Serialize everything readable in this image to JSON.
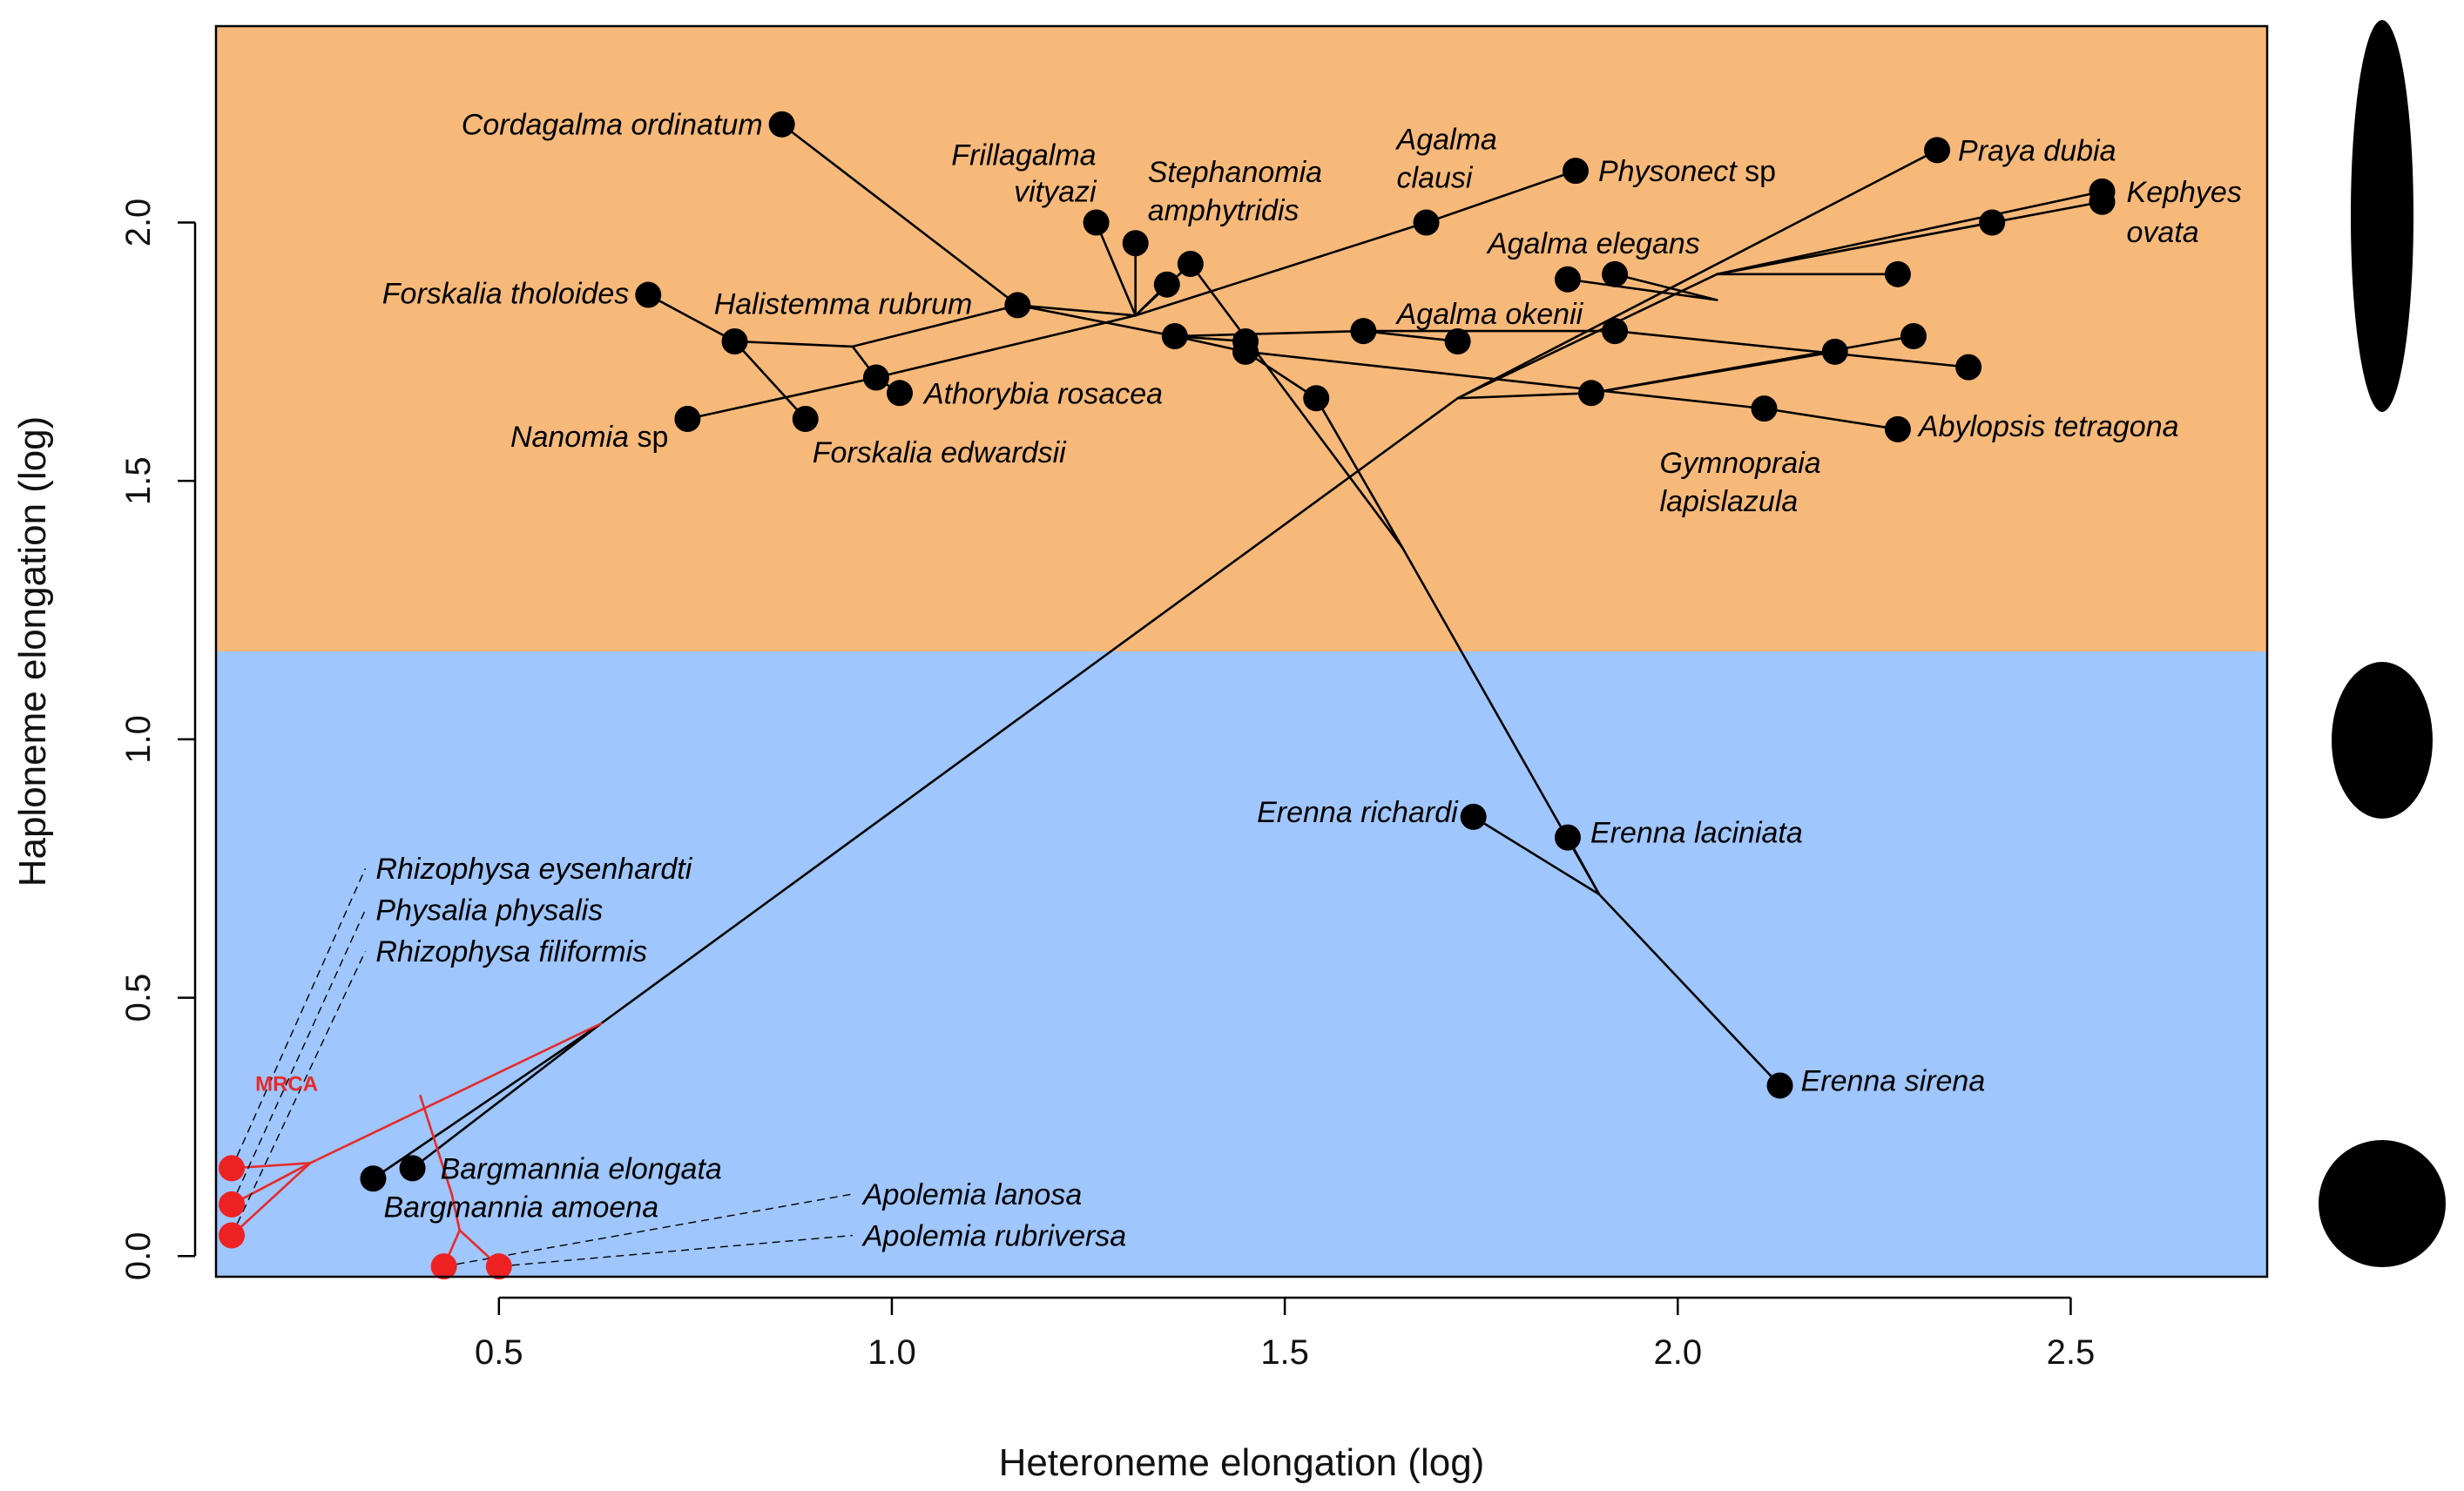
{
  "chart_data": {
    "type": "scatter",
    "title": "",
    "xlabel": "Heteroneme elongation (log)",
    "ylabel": "Haploneme elongation (log)",
    "xlim": [
      0.14,
      2.75
    ],
    "ylim": [
      -0.04,
      2.38
    ],
    "xticks": [
      {
        "value": 0.5,
        "label": "0.5"
      },
      {
        "value": 1.0,
        "label": "1.0"
      },
      {
        "value": 1.5,
        "label": "1.5"
      },
      {
        "value": 2.0,
        "label": "2.0"
      },
      {
        "value": 2.5,
        "label": "2.5"
      }
    ],
    "yticks": [
      {
        "value": 0.0,
        "label": "0.0"
      },
      {
        "value": 0.5,
        "label": "0.5"
      },
      {
        "value": 1.0,
        "label": "1.0"
      },
      {
        "value": 1.5,
        "label": "1.5"
      },
      {
        "value": 2.0,
        "label": "2.0"
      }
    ],
    "background_regions": [
      {
        "y_from": 1.17,
        "y_to": 2.38,
        "color": "#f6b97a"
      },
      {
        "y_from": -0.04,
        "y_to": 1.17,
        "color": "#9fc6fd"
      }
    ],
    "colors": {
      "black_points": "#000000",
      "red_points": "#ee2222",
      "red_branches": "#e52a2a"
    },
    "points": [
      {
        "label": "Cordagalma ordinatum",
        "x": 0.86,
        "y": 2.19,
        "color": "black"
      },
      {
        "label": "Physonect sp",
        "x": 1.87,
        "y": 2.1,
        "color": "black"
      },
      {
        "label": "Praya dubia",
        "x": 2.33,
        "y": 2.14,
        "color": "black"
      },
      {
        "label": "Kephyes ovata",
        "x": 2.54,
        "y": 2.06,
        "color": "black"
      },
      {
        "label": "",
        "x": 2.54,
        "y": 2.04,
        "color": "black"
      },
      {
        "label": "",
        "x": 2.4,
        "y": 2.0,
        "color": "black"
      },
      {
        "label": "Frillagalma vityazi",
        "x": 1.26,
        "y": 2.0,
        "color": "black"
      },
      {
        "label": "Stephanomia amphytridis",
        "x": 1.31,
        "y": 1.96,
        "color": "black"
      },
      {
        "label": "",
        "x": 1.38,
        "y": 1.92,
        "color": "black"
      },
      {
        "label": "",
        "x": 1.35,
        "y": 1.88,
        "color": "black"
      },
      {
        "label": "Agalma clausi",
        "x": 1.68,
        "y": 2.0,
        "color": "black"
      },
      {
        "label": "Agalma elegans",
        "x": 1.86,
        "y": 1.89,
        "color": "black"
      },
      {
        "label": "",
        "x": 1.92,
        "y": 1.9,
        "color": "black"
      },
      {
        "label": "",
        "x": 2.28,
        "y": 1.9,
        "color": "black"
      },
      {
        "label": "Forskalia tholoides",
        "x": 0.69,
        "y": 1.86,
        "color": "black"
      },
      {
        "label": "Halistemma rubrum",
        "x": 1.16,
        "y": 1.84,
        "color": "black"
      },
      {
        "label": "",
        "x": 0.8,
        "y": 1.77,
        "color": "black"
      },
      {
        "label": "",
        "x": 0.98,
        "y": 1.7,
        "color": "black"
      },
      {
        "label": "Athorybia rosacea",
        "x": 1.01,
        "y": 1.67,
        "color": "black"
      },
      {
        "label": "Forskalia edwardsii",
        "x": 0.89,
        "y": 1.62,
        "color": "black"
      },
      {
        "label": "Nanomia sp",
        "x": 0.74,
        "y": 1.62,
        "color": "black"
      },
      {
        "label": "",
        "x": 1.36,
        "y": 1.78,
        "color": "black"
      },
      {
        "label": "",
        "x": 1.45,
        "y": 1.77,
        "color": "black"
      },
      {
        "label": "",
        "x": 1.45,
        "y": 1.75,
        "color": "black"
      },
      {
        "label": "",
        "x": 1.6,
        "y": 1.79,
        "color": "black"
      },
      {
        "label": "Agalma okenii",
        "x": 1.72,
        "y": 1.77,
        "color": "black"
      },
      {
        "label": "",
        "x": 1.92,
        "y": 1.79,
        "color": "black"
      },
      {
        "label": "",
        "x": 1.54,
        "y": 1.66,
        "color": "black"
      },
      {
        "label": "",
        "x": 1.89,
        "y": 1.67,
        "color": "black"
      },
      {
        "label": "Gymnopraia lapislazula",
        "x": 2.11,
        "y": 1.64,
        "color": "black"
      },
      {
        "label": "",
        "x": 2.2,
        "y": 1.75,
        "color": "black"
      },
      {
        "label": "",
        "x": 2.3,
        "y": 1.78,
        "color": "black"
      },
      {
        "label": "",
        "x": 2.37,
        "y": 1.72,
        "color": "black"
      },
      {
        "label": "Abylopsis tetragona",
        "x": 2.28,
        "y": 1.6,
        "color": "black"
      },
      {
        "label": "Erenna richardi",
        "x": 1.74,
        "y": 0.85,
        "color": "black"
      },
      {
        "label": "Erenna laciniata",
        "x": 1.86,
        "y": 0.81,
        "color": "black"
      },
      {
        "label": "Erenna sirena",
        "x": 2.13,
        "y": 0.33,
        "color": "black"
      },
      {
        "label": "Bargmannia elongata",
        "x": 0.39,
        "y": 0.17,
        "color": "black"
      },
      {
        "label": "Bargmannia amoena",
        "x": 0.34,
        "y": 0.15,
        "color": "black"
      },
      {
        "label": "",
        "x": 0.16,
        "y": 0.17,
        "color": "red"
      },
      {
        "label": "",
        "x": 0.16,
        "y": 0.1,
        "color": "red"
      },
      {
        "label": "",
        "x": 0.16,
        "y": 0.04,
        "color": "red"
      },
      {
        "label": "",
        "x": 0.43,
        "y": -0.02,
        "color": "red"
      },
      {
        "label": "",
        "x": 0.5,
        "y": -0.02,
        "color": "red"
      }
    ],
    "leader_labels": [
      {
        "label": "Rhizophysa eysenhardti",
        "from": [
          0.16,
          0.17
        ],
        "to": [
          0.33,
          0.75
        ]
      },
      {
        "label": "Physalia physalis",
        "from": [
          0.16,
          0.1
        ],
        "to": [
          0.33,
          0.67
        ]
      },
      {
        "label": "Rhizophysa filiformis",
        "from": [
          0.16,
          0.04
        ],
        "to": [
          0.33,
          0.59
        ]
      },
      {
        "label": "Apolemia lanosa",
        "from": [
          0.43,
          -0.02
        ],
        "to": [
          0.95,
          0.12
        ]
      },
      {
        "label": "Apolemia rubriversa",
        "from": [
          0.5,
          -0.02
        ],
        "to": [
          0.95,
          0.04
        ]
      }
    ],
    "annotations": [
      {
        "text": "MRCA",
        "x": 0.19,
        "y": 0.32,
        "color": "#e52a2a"
      }
    ],
    "branches": [
      {
        "color": "black",
        "points": [
          [
            0.34,
            0.15
          ],
          [
            0.63,
            0.45
          ]
        ]
      },
      {
        "color": "black",
        "points": [
          [
            0.39,
            0.17
          ],
          [
            0.63,
            0.45
          ]
        ]
      },
      {
        "color": "black",
        "points": [
          [
            0.63,
            0.45
          ],
          [
            1.72,
            1.66
          ],
          [
            2.33,
            2.14
          ]
        ]
      },
      {
        "color": "black",
        "points": [
          [
            1.72,
            1.66
          ],
          [
            2.05,
            1.9
          ],
          [
            2.54,
            2.06
          ]
        ]
      },
      {
        "color": "black",
        "points": [
          [
            2.05,
            1.9
          ],
          [
            2.4,
            2.0
          ]
        ]
      },
      {
        "color": "black",
        "points": [
          [
            2.05,
            1.9
          ],
          [
            2.54,
            2.04
          ]
        ]
      },
      {
        "color": "black",
        "points": [
          [
            1.72,
            1.66
          ],
          [
            1.89,
            1.67
          ]
        ]
      },
      {
        "color": "black",
        "points": [
          [
            1.89,
            1.67
          ],
          [
            2.2,
            1.75
          ]
        ]
      },
      {
        "color": "black",
        "points": [
          [
            1.89,
            1.67
          ],
          [
            2.3,
            1.78
          ]
        ]
      },
      {
        "color": "black",
        "points": [
          [
            2.05,
            1.9
          ],
          [
            2.28,
            1.9
          ]
        ]
      },
      {
        "color": "black",
        "points": [
          [
            0.86,
            2.19
          ],
          [
            1.16,
            1.84
          ]
        ]
      },
      {
        "color": "black",
        "points": [
          [
            1.16,
            1.84
          ],
          [
            1.31,
            1.82
          ],
          [
            1.68,
            2.0
          ]
        ]
      },
      {
        "color": "black",
        "points": [
          [
            1.68,
            2.0
          ],
          [
            1.87,
            2.1
          ]
        ]
      },
      {
        "color": "black",
        "points": [
          [
            1.31,
            1.82
          ],
          [
            1.26,
            2.0
          ]
        ]
      },
      {
        "color": "black",
        "points": [
          [
            1.31,
            1.82
          ],
          [
            1.31,
            1.96
          ]
        ]
      },
      {
        "color": "black",
        "points": [
          [
            1.31,
            1.82
          ],
          [
            1.38,
            1.92
          ]
        ]
      },
      {
        "color": "black",
        "points": [
          [
            1.31,
            1.82
          ],
          [
            1.35,
            1.88
          ]
        ]
      },
      {
        "color": "black",
        "points": [
          [
            1.16,
            1.84
          ],
          [
            0.95,
            1.76
          ]
        ]
      },
      {
        "color": "black",
        "points": [
          [
            0.95,
            1.76
          ],
          [
            0.8,
            1.77
          ],
          [
            0.69,
            1.86
          ]
        ]
      },
      {
        "color": "black",
        "points": [
          [
            0.8,
            1.77
          ],
          [
            0.89,
            1.62
          ]
        ]
      },
      {
        "color": "black",
        "points": [
          [
            0.95,
            1.76
          ],
          [
            0.98,
            1.7
          ],
          [
            0.74,
            1.62
          ]
        ]
      },
      {
        "color": "black",
        "points": [
          [
            0.98,
            1.7
          ],
          [
            1.01,
            1.67
          ]
        ]
      },
      {
        "color": "black",
        "points": [
          [
            0.98,
            1.7
          ],
          [
            1.31,
            1.82
          ]
        ]
      },
      {
        "color": "black",
        "points": [
          [
            1.16,
            1.84
          ],
          [
            1.36,
            1.78
          ],
          [
            1.45,
            1.77
          ]
        ]
      },
      {
        "color": "black",
        "points": [
          [
            1.36,
            1.78
          ],
          [
            1.45,
            1.75
          ]
        ]
      },
      {
        "color": "black",
        "points": [
          [
            1.36,
            1.78
          ],
          [
            1.6,
            1.79
          ],
          [
            1.72,
            1.77
          ]
        ]
      },
      {
        "color": "black",
        "points": [
          [
            1.6,
            1.79
          ],
          [
            1.92,
            1.79
          ]
        ]
      },
      {
        "color": "black",
        "points": [
          [
            1.92,
            1.79
          ],
          [
            2.37,
            1.72
          ]
        ]
      },
      {
        "color": "black",
        "points": [
          [
            1.45,
            1.75
          ],
          [
            2.11,
            1.64
          ]
        ]
      },
      {
        "color": "black",
        "points": [
          [
            2.11,
            1.64
          ],
          [
            2.28,
            1.6
          ]
        ]
      },
      {
        "color": "black",
        "points": [
          [
            1.92,
            1.9
          ],
          [
            2.05,
            1.85
          ],
          [
            1.86,
            1.89
          ]
        ]
      },
      {
        "color": "black",
        "points": [
          [
            1.45,
            1.75
          ],
          [
            1.54,
            1.66
          ]
        ]
      },
      {
        "color": "black",
        "points": [
          [
            1.38,
            1.92
          ],
          [
            1.65,
            1.37
          ]
        ]
      },
      {
        "color": "black",
        "points": [
          [
            1.54,
            1.66
          ],
          [
            1.65,
            1.37
          ]
        ]
      },
      {
        "color": "black",
        "points": [
          [
            1.65,
            1.37
          ],
          [
            1.9,
            0.7
          ]
        ]
      },
      {
        "color": "black",
        "points": [
          [
            1.74,
            0.85
          ],
          [
            1.9,
            0.7
          ]
        ]
      },
      {
        "color": "black",
        "points": [
          [
            1.86,
            0.81
          ],
          [
            1.9,
            0.7
          ]
        ]
      },
      {
        "color": "black",
        "points": [
          [
            1.9,
            0.7
          ],
          [
            2.13,
            0.33
          ]
        ]
      },
      {
        "color": "red",
        "points": [
          [
            0.63,
            0.45
          ],
          [
            0.26,
            0.18
          ]
        ]
      },
      {
        "color": "red",
        "points": [
          [
            0.26,
            0.18
          ],
          [
            0.16,
            0.1
          ]
        ]
      },
      {
        "color": "red",
        "points": [
          [
            0.26,
            0.18
          ],
          [
            0.16,
            0.04
          ]
        ]
      },
      {
        "color": "red",
        "points": [
          [
            0.26,
            0.18
          ],
          [
            0.16,
            0.17
          ]
        ]
      },
      {
        "color": "red",
        "points": [
          [
            0.4,
            0.31
          ],
          [
            0.44,
            0.12
          ],
          [
            0.45,
            0.05
          ],
          [
            0.43,
            -0.02
          ]
        ]
      },
      {
        "color": "red",
        "points": [
          [
            0.45,
            0.05
          ],
          [
            0.5,
            -0.02
          ]
        ]
      }
    ],
    "legend_shapes": [
      {
        "shape": "ellipse",
        "name": "elongated-ellipse",
        "aspect": 4.0
      },
      {
        "shape": "ellipse",
        "name": "medium-ellipse",
        "aspect": 1.55
      },
      {
        "shape": "ellipse",
        "name": "round-ellipse",
        "aspect": 1.0
      }
    ],
    "legend_position": "right",
    "grid": false
  }
}
